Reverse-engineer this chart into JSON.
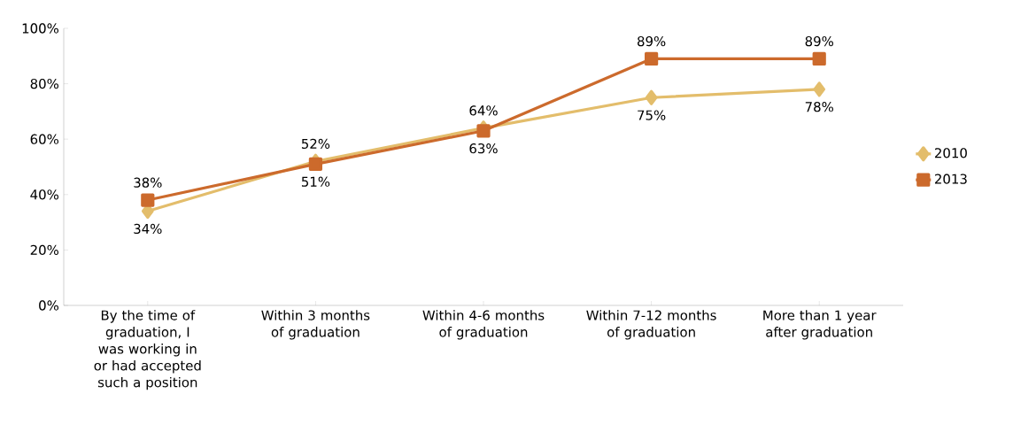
{
  "chart_data": {
    "type": "line",
    "categories": [
      "By the time of graduation, I was working in or had accepted such a position",
      "Within 3 months of graduation",
      "Within 4-6 months of graduation",
      "Within 7-12 months of graduation",
      "More than 1 year after graduation"
    ],
    "series": [
      {
        "name": "2010",
        "color": "#e3bd6b",
        "marker": "diamond",
        "values": [
          34,
          52,
          64,
          75,
          78
        ],
        "value_labels": [
          "34%",
          "52%",
          "64%",
          "75%",
          "78%"
        ]
      },
      {
        "name": "2013",
        "color": "#cc6a2c",
        "marker": "square",
        "values": [
          38,
          51,
          63,
          89,
          89
        ],
        "value_labels": [
          "38%",
          "51%",
          "63%",
          "89%",
          "89%"
        ]
      }
    ],
    "ylim": [
      0,
      100
    ],
    "yticks": [
      {
        "value": 0,
        "label": "0%"
      },
      {
        "value": 20,
        "label": "20%"
      },
      {
        "value": 40,
        "label": "40%"
      },
      {
        "value": 60,
        "label": "60%"
      },
      {
        "value": 80,
        "label": "80%"
      },
      {
        "value": 100,
        "label": "100%"
      }
    ],
    "grid": false,
    "legend": "right",
    "line_style": "solid"
  }
}
